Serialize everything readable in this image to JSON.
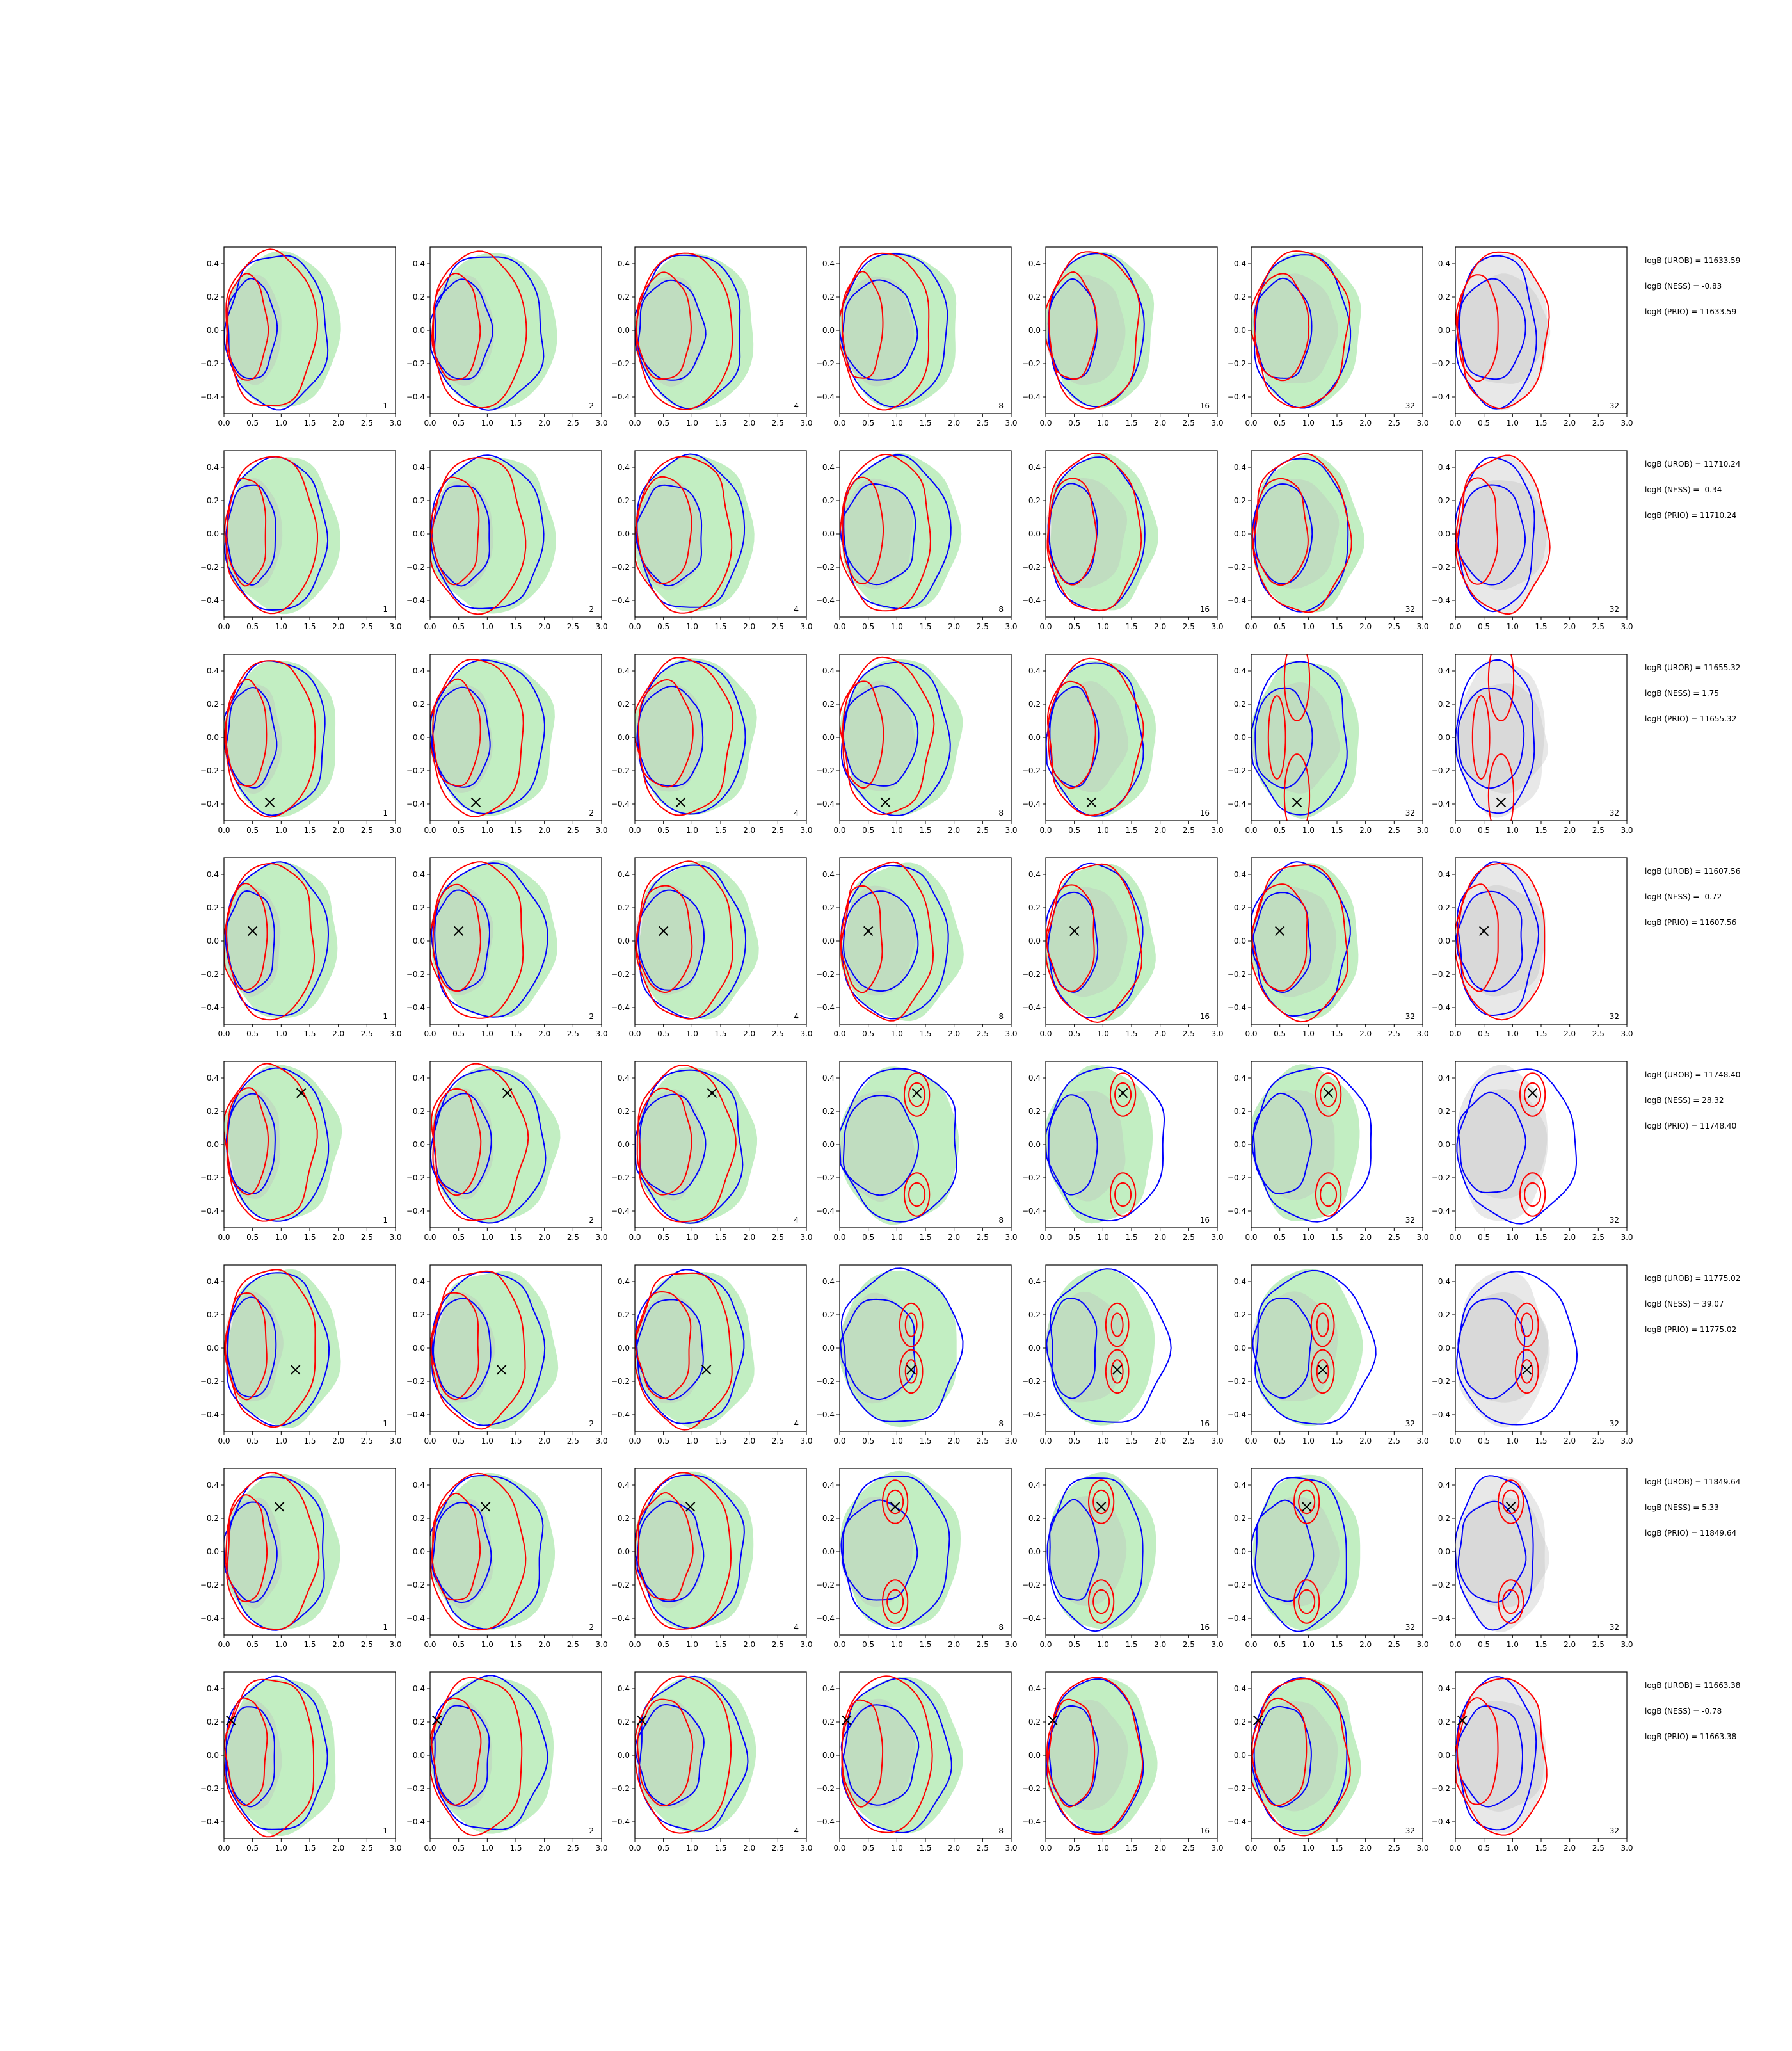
{
  "chart_data": {
    "type": "contour",
    "layout": "grid of 8 rows x 7 columns of 2D density contour plots",
    "xlim": [
      0.0,
      3.0
    ],
    "ylim": [
      -0.5,
      0.5
    ],
    "xticks": [
      "0.0",
      "0.5",
      "1.0",
      "1.5",
      "2.0",
      "2.5",
      "3.0"
    ],
    "yticks": [
      "0.4",
      "0.2",
      "0.0",
      "−0.2",
      "−0.4"
    ],
    "ytick_values": [
      0.4,
      0.2,
      0.0,
      -0.2,
      -0.4
    ],
    "xlabel": "",
    "ylabel": "",
    "column_labels": [
      "1",
      "2",
      "4",
      "8",
      "16",
      "32",
      "32"
    ],
    "colors": {
      "fill_green": "#90e090",
      "fill_grey": "#d6d6d6",
      "contour_blue": "#0000ff",
      "contour_red": "#ff0000",
      "marker": "#000000"
    },
    "rows": [
      {
        "marker": null,
        "mode": "single",
        "annotations": [
          "logB (UROB) = 11633.59",
          "logB (NESS) = -0.83",
          "logB (PRIO) = 11633.59"
        ]
      },
      {
        "marker": null,
        "mode": "single",
        "annotations": [
          "logB (UROB) = 11710.24",
          "logB (NESS) = -0.34",
          "logB (PRIO) = 11710.24"
        ]
      },
      {
        "marker": [
          0.8,
          -0.39
        ],
        "mode": "vertical",
        "annotations": [
          "logB (UROB) = 11655.32",
          "logB (NESS) = 1.75",
          "logB (PRIO) = 11655.32"
        ]
      },
      {
        "marker": [
          0.5,
          0.06
        ],
        "mode": "single",
        "annotations": [
          "logB (UROB) = 11607.56",
          "logB (NESS) = -0.72",
          "logB (PRIO) = 11607.56"
        ]
      },
      {
        "marker": [
          1.35,
          0.31
        ],
        "mode": "twin",
        "annotations": [
          "logB (UROB) = 11748.40",
          "logB (NESS) = 28.32",
          "logB (PRIO) = 11748.40"
        ]
      },
      {
        "marker": [
          1.25,
          -0.13
        ],
        "mode": "twin_small",
        "annotations": [
          "logB (UROB) = 11775.02",
          "logB (NESS) = 39.07",
          "logB (PRIO) = 11775.02"
        ]
      },
      {
        "marker": [
          0.97,
          0.27
        ],
        "mode": "vertical_twin",
        "annotations": [
          "logB (UROB) = 11849.64",
          "logB (NESS) = 5.33",
          "logB (PRIO) = 11849.64"
        ]
      },
      {
        "marker": [
          0.12,
          0.21
        ],
        "mode": "single",
        "annotations": [
          "logB (UROB) = 11663.38",
          "logB (NESS) = -0.78",
          "logB (PRIO) = 11663.38"
        ]
      }
    ]
  }
}
